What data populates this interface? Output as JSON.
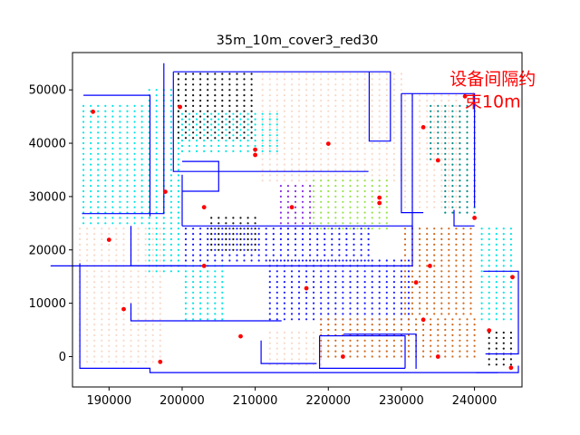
{
  "chart_data": {
    "type": "scatter",
    "title": "35m_10m_cover3_red30",
    "xlabel": "",
    "ylabel": "",
    "xlim": [
      185000,
      246500
    ],
    "ylim": [
      -5700,
      57000
    ],
    "xticks": [
      190000,
      200000,
      210000,
      220000,
      230000,
      240000
    ],
    "yticks": [
      0,
      10000,
      20000,
      30000,
      40000,
      50000
    ],
    "grid": false,
    "annotation": {
      "lines": [
        "设备间隔约",
        "束10m"
      ],
      "x": 242500,
      "y": 51000,
      "color": "#ff0000"
    },
    "series": [
      {
        "color": "#ff0000",
        "points": [
          [
            187800,
            45900
          ],
          [
            199700,
            46800
          ],
          [
            210000,
            38800
          ],
          [
            210000,
            37800
          ],
          [
            220000,
            39900
          ],
          [
            197700,
            30900
          ],
          [
            203000,
            28000
          ],
          [
            215000,
            28000
          ],
          [
            227000,
            29800
          ],
          [
            227000,
            28800
          ],
          [
            233000,
            43000
          ],
          [
            235000,
            36800
          ],
          [
            238700,
            48800
          ],
          [
            240000,
            26000
          ],
          [
            190000,
            21900
          ],
          [
            203000,
            17000
          ],
          [
            217000,
            12800
          ],
          [
            233900,
            17000
          ],
          [
            232000,
            13900
          ],
          [
            192000,
            8900
          ],
          [
            233000,
            6900
          ],
          [
            208000,
            3800
          ],
          [
            197000,
            -1000
          ],
          [
            222000,
            0
          ],
          [
            235000,
            0
          ],
          [
            242000,
            4900
          ],
          [
            245200,
            14900
          ],
          [
            245000,
            -2100
          ]
        ]
      }
    ]
  }
}
